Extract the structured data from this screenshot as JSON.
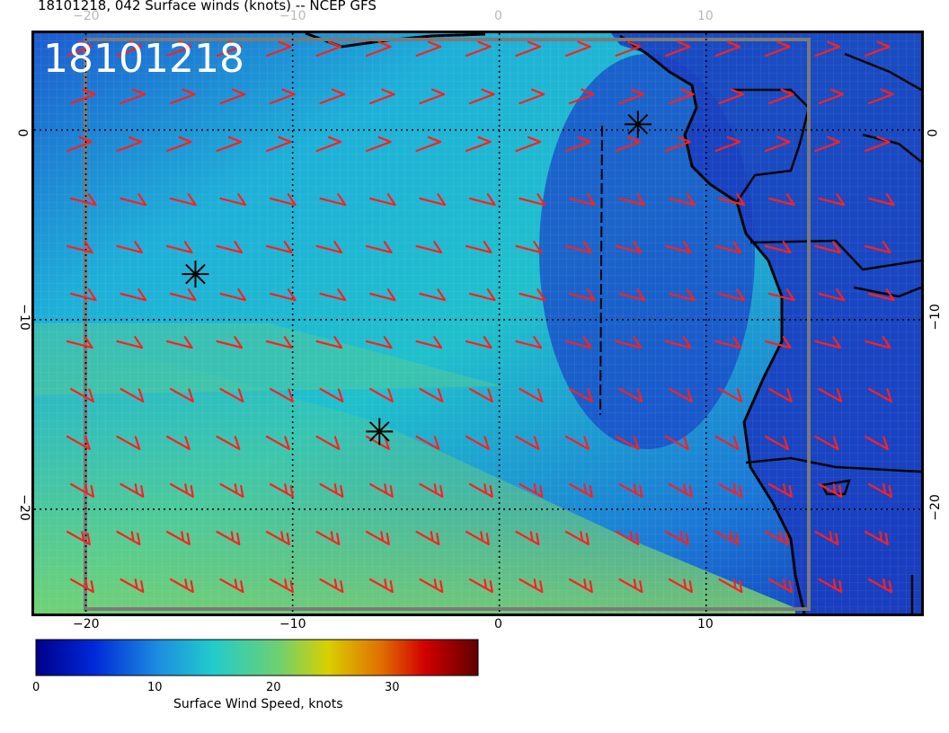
{
  "title": "18101218, 042 Surface winds (knots) -- NCEP GFS",
  "stamp": "18101218",
  "map": {
    "lon_range": [
      -22.5,
      20.4
    ],
    "lat_range": [
      -25.5,
      5.1
    ],
    "lon_ticks": [
      -20,
      -10,
      0,
      10
    ],
    "lat_ticks": [
      0,
      -10,
      -20
    ],
    "top_tick_labels": [
      "−20",
      "−10",
      "0",
      "10"
    ],
    "bottom_tick_labels": [
      "−20",
      "−10",
      "0",
      "10"
    ],
    "left_tick_labels": [
      "0",
      "−10",
      "−20"
    ],
    "right_tick_labels": [
      "0",
      "−10",
      "−20"
    ],
    "gridlines": "dotted",
    "colors": {
      "ocean_low": "#1f4fcf",
      "ocean_mid": "#1fb3d6",
      "ocean_high": "#5cc98a",
      "barbs": "#ff2020",
      "coast": "#000000",
      "box": "#7a7a7a"
    },
    "markers": [
      {
        "name": "asterisk-1",
        "lon": -14.7,
        "lat": -7.6
      },
      {
        "name": "asterisk-2",
        "lon": -5.8,
        "lat": -15.9
      },
      {
        "name": "asterisk-3",
        "lon": 6.7,
        "lat": 0.3
      }
    ]
  },
  "colorbar": {
    "label": "Surface Wind Speed, knots",
    "ticks": [
      "0",
      "10",
      "20",
      "30"
    ],
    "tick_values": [
      0,
      10,
      20,
      30
    ],
    "range": [
      0,
      37
    ]
  }
}
